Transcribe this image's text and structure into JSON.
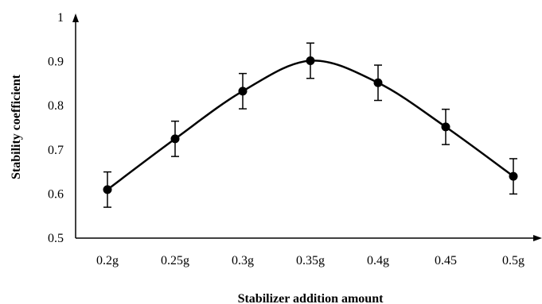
{
  "chart_data": {
    "type": "line",
    "categories": [
      "0.2g",
      "0.25g",
      "0.3g",
      "0.35g",
      "0.4g",
      "0.45",
      "0.5g"
    ],
    "series": [
      {
        "values": [
          0.61,
          0.725,
          0.833,
          0.902,
          0.852,
          0.752,
          0.64
        ],
        "error": [
          0.04,
          0.04,
          0.04,
          0.04,
          0.04,
          0.04,
          0.04
        ]
      }
    ],
    "yticks": [
      "0.5",
      "0.6",
      "0.7",
      "0.8",
      "0.9",
      "1"
    ],
    "ylim": [
      0.5,
      1.0
    ],
    "xlabel": "Stabilizer addition amount",
    "ylabel": "Stability coefficient",
    "line_color": "#000000",
    "smooth": true,
    "grid": false,
    "error_bars": true
  }
}
